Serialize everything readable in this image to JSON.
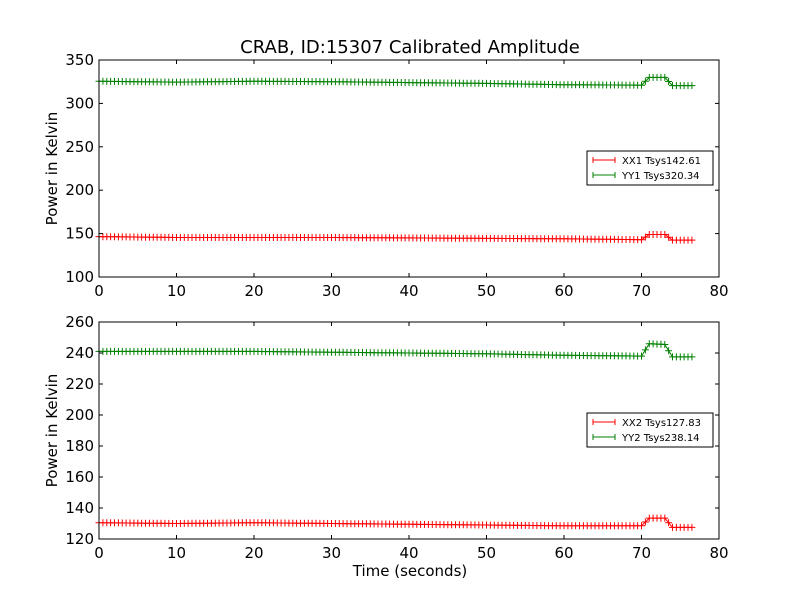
{
  "chart_data": {
    "title": "CRAB, ID:15307 Calibrated Amplitude",
    "xlabel": "Time (seconds)",
    "subplots": [
      {
        "type": "line",
        "ylabel": "Power in Kelvin",
        "xlim": [
          0,
          80
        ],
        "ylim": [
          100,
          350
        ],
        "xticks": [
          0,
          10,
          20,
          30,
          40,
          50,
          60,
          70,
          80
        ],
        "yticks": [
          100,
          150,
          200,
          250,
          300,
          350
        ],
        "legend_position": "center-right",
        "series": [
          {
            "name": "XX1 Tsys142.61",
            "color": "#ff0000",
            "marker": "+",
            "points": [
              [
                0,
                146.5
              ],
              [
                10,
                145.5
              ],
              [
                20,
                145.5
              ],
              [
                30,
                145.5
              ],
              [
                40,
                145
              ],
              [
                50,
                144.5
              ],
              [
                60,
                144
              ],
              [
                70,
                143
              ],
              [
                71,
                149
              ],
              [
                73,
                149
              ],
              [
                74,
                142.5
              ],
              [
                76.5,
                142.5
              ]
            ]
          },
          {
            "name": "YY1 Tsys320.34",
            "color": "#008000",
            "marker": "+",
            "points": [
              [
                0,
                325.5
              ],
              [
                10,
                324.5
              ],
              [
                20,
                325.5
              ],
              [
                30,
                325
              ],
              [
                40,
                324
              ],
              [
                50,
                323
              ],
              [
                60,
                321.5
              ],
              [
                70,
                321
              ],
              [
                71,
                330
              ],
              [
                73,
                330
              ],
              [
                74,
                320.5
              ],
              [
                76.5,
                320.5
              ]
            ]
          }
        ]
      },
      {
        "type": "line",
        "ylabel": "Power in Kelvin",
        "xlim": [
          0,
          80
        ],
        "ylim": [
          120,
          260
        ],
        "xticks": [
          0,
          10,
          20,
          30,
          40,
          50,
          60,
          70,
          80
        ],
        "yticks": [
          120,
          140,
          160,
          180,
          200,
          220,
          240,
          260
        ],
        "legend_position": "center-right",
        "series": [
          {
            "name": "XX2 Tsys127.83",
            "color": "#ff0000",
            "marker": "+",
            "points": [
              [
                0,
                130.5
              ],
              [
                10,
                130
              ],
              [
                20,
                130.5
              ],
              [
                30,
                130
              ],
              [
                40,
                129.5
              ],
              [
                50,
                129
              ],
              [
                60,
                128.5
              ],
              [
                70,
                128.5
              ],
              [
                71,
                133.5
              ],
              [
                73,
                133.5
              ],
              [
                74,
                127.5
              ],
              [
                76.5,
                127.5
              ]
            ]
          },
          {
            "name": "YY2 Tsys238.14",
            "color": "#008000",
            "marker": "+",
            "points": [
              [
                0,
                241
              ],
              [
                10,
                241
              ],
              [
                20,
                241
              ],
              [
                30,
                240.5
              ],
              [
                40,
                240
              ],
              [
                50,
                239.5
              ],
              [
                60,
                238.5
              ],
              [
                70,
                238
              ],
              [
                71,
                246
              ],
              [
                73,
                245.5
              ],
              [
                74,
                237.5
              ],
              [
                76.5,
                237.5
              ]
            ]
          }
        ]
      }
    ]
  }
}
